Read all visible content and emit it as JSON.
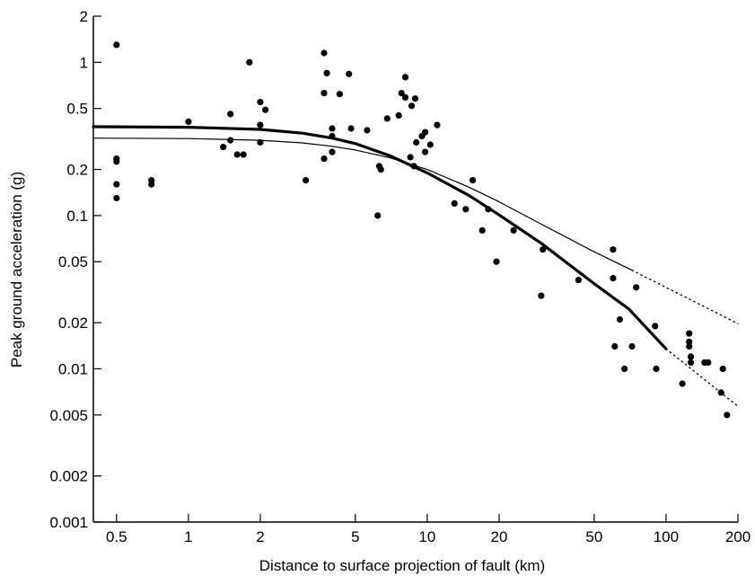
{
  "chart_data": {
    "type": "scatter",
    "title": "",
    "xlabel": "Distance to surface projection of fault (km)",
    "ylabel": "Peak ground acceleration (g)",
    "x_scale": "log",
    "y_scale": "log",
    "xlim": [
      0.4,
      200
    ],
    "ylim": [
      0.001,
      2
    ],
    "grid": false,
    "legend": "none",
    "x_ticks": [
      {
        "value": 0.5,
        "label": "0.5"
      },
      {
        "value": 1,
        "label": "1"
      },
      {
        "value": 2,
        "label": "2"
      },
      {
        "value": 5,
        "label": "5"
      },
      {
        "value": 10,
        "label": "10"
      },
      {
        "value": 20,
        "label": "20"
      },
      {
        "value": 50,
        "label": "50"
      },
      {
        "value": 100,
        "label": "100"
      },
      {
        "value": 200,
        "label": "200"
      }
    ],
    "y_ticks": [
      {
        "value": 0.001,
        "label": "0.001"
      },
      {
        "value": 0.002,
        "label": "0.002"
      },
      {
        "value": 0.005,
        "label": "0.005"
      },
      {
        "value": 0.01,
        "label": "0.01"
      },
      {
        "value": 0.02,
        "label": "0.02"
      },
      {
        "value": 0.05,
        "label": "0.05"
      },
      {
        "value": 0.1,
        "label": "0.1"
      },
      {
        "value": 0.2,
        "label": "0.2"
      },
      {
        "value": 0.5,
        "label": "0.5"
      },
      {
        "value": 1,
        "label": "1"
      },
      {
        "value": 2,
        "label": "2"
      }
    ],
    "points": [
      [
        0.5,
        1.3
      ],
      [
        0.5,
        0.235
      ],
      [
        0.5,
        0.225
      ],
      [
        0.5,
        0.16
      ],
      [
        0.5,
        0.13
      ],
      [
        0.7,
        0.17
      ],
      [
        0.7,
        0.16
      ],
      [
        1.0,
        0.41
      ],
      [
        1.4,
        0.28
      ],
      [
        1.5,
        0.46
      ],
      [
        1.5,
        0.31
      ],
      [
        1.6,
        0.25
      ],
      [
        1.7,
        0.25
      ],
      [
        1.8,
        1.0
      ],
      [
        2.0,
        0.55
      ],
      [
        2.0,
        0.39
      ],
      [
        2.0,
        0.3
      ],
      [
        2.1,
        0.49
      ],
      [
        3.1,
        0.17
      ],
      [
        3.7,
        1.15
      ],
      [
        3.7,
        0.63
      ],
      [
        3.7,
        0.235
      ],
      [
        3.8,
        0.85
      ],
      [
        4.0,
        0.37
      ],
      [
        4.0,
        0.33
      ],
      [
        4.0,
        0.26
      ],
      [
        4.3,
        0.62
      ],
      [
        4.7,
        0.84
      ],
      [
        4.8,
        0.37
      ],
      [
        5.6,
        0.36
      ],
      [
        6.2,
        0.1
      ],
      [
        6.3,
        0.21
      ],
      [
        6.4,
        0.2
      ],
      [
        6.8,
        0.43
      ],
      [
        7.6,
        0.45
      ],
      [
        7.8,
        0.63
      ],
      [
        8.1,
        0.8
      ],
      [
        8.1,
        0.59
      ],
      [
        8.5,
        0.24
      ],
      [
        8.6,
        0.52
      ],
      [
        8.8,
        0.21
      ],
      [
        8.9,
        0.58
      ],
      [
        9.0,
        0.3
      ],
      [
        9.5,
        0.33
      ],
      [
        9.8,
        0.35
      ],
      [
        9.8,
        0.26
      ],
      [
        10.3,
        0.29
      ],
      [
        11.0,
        0.39
      ],
      [
        13.0,
        0.12
      ],
      [
        14.5,
        0.11
      ],
      [
        15.5,
        0.17
      ],
      [
        17.0,
        0.08
      ],
      [
        18.0,
        0.11
      ],
      [
        19.5,
        0.05
      ],
      [
        23.0,
        0.08
      ],
      [
        30.0,
        0.03
      ],
      [
        30.5,
        0.06
      ],
      [
        43.0,
        0.038
      ],
      [
        60.0,
        0.06
      ],
      [
        60.0,
        0.039
      ],
      [
        61.0,
        0.014
      ],
      [
        64.0,
        0.021
      ],
      [
        67.0,
        0.01
      ],
      [
        72.0,
        0.014
      ],
      [
        75.0,
        0.034
      ],
      [
        90.0,
        0.019
      ],
      [
        91.0,
        0.01
      ],
      [
        117.0,
        0.008
      ],
      [
        125.0,
        0.017
      ],
      [
        125.0,
        0.015
      ],
      [
        125.0,
        0.014
      ],
      [
        127.0,
        0.012
      ],
      [
        127.0,
        0.011
      ],
      [
        145.0,
        0.011
      ],
      [
        150.0,
        0.011
      ],
      [
        170.0,
        0.007
      ],
      [
        173.0,
        0.01
      ],
      [
        180.0,
        0.005
      ]
    ],
    "curves": [
      {
        "style": "thick",
        "x": [
          0.4,
          1,
          2,
          3,
          4,
          5,
          7,
          10,
          15,
          20,
          30,
          50,
          70,
          100
        ],
        "y": [
          0.38,
          0.377,
          0.365,
          0.345,
          0.32,
          0.295,
          0.245,
          0.19,
          0.135,
          0.101,
          0.066,
          0.036,
          0.0245,
          0.0135
        ]
      },
      {
        "style": "dotted",
        "x": [
          100,
          200
        ],
        "y": [
          0.0135,
          0.0057
        ]
      },
      {
        "style": "thin",
        "x": [
          0.4,
          1,
          2,
          3,
          4,
          5,
          7,
          10,
          15,
          20,
          30,
          50,
          72
        ],
        "y": [
          0.32,
          0.318,
          0.31,
          0.298,
          0.283,
          0.268,
          0.238,
          0.2,
          0.153,
          0.123,
          0.088,
          0.058,
          0.044
        ]
      },
      {
        "style": "dotted",
        "x": [
          72,
          200
        ],
        "y": [
          0.044,
          0.0197
        ]
      }
    ]
  }
}
